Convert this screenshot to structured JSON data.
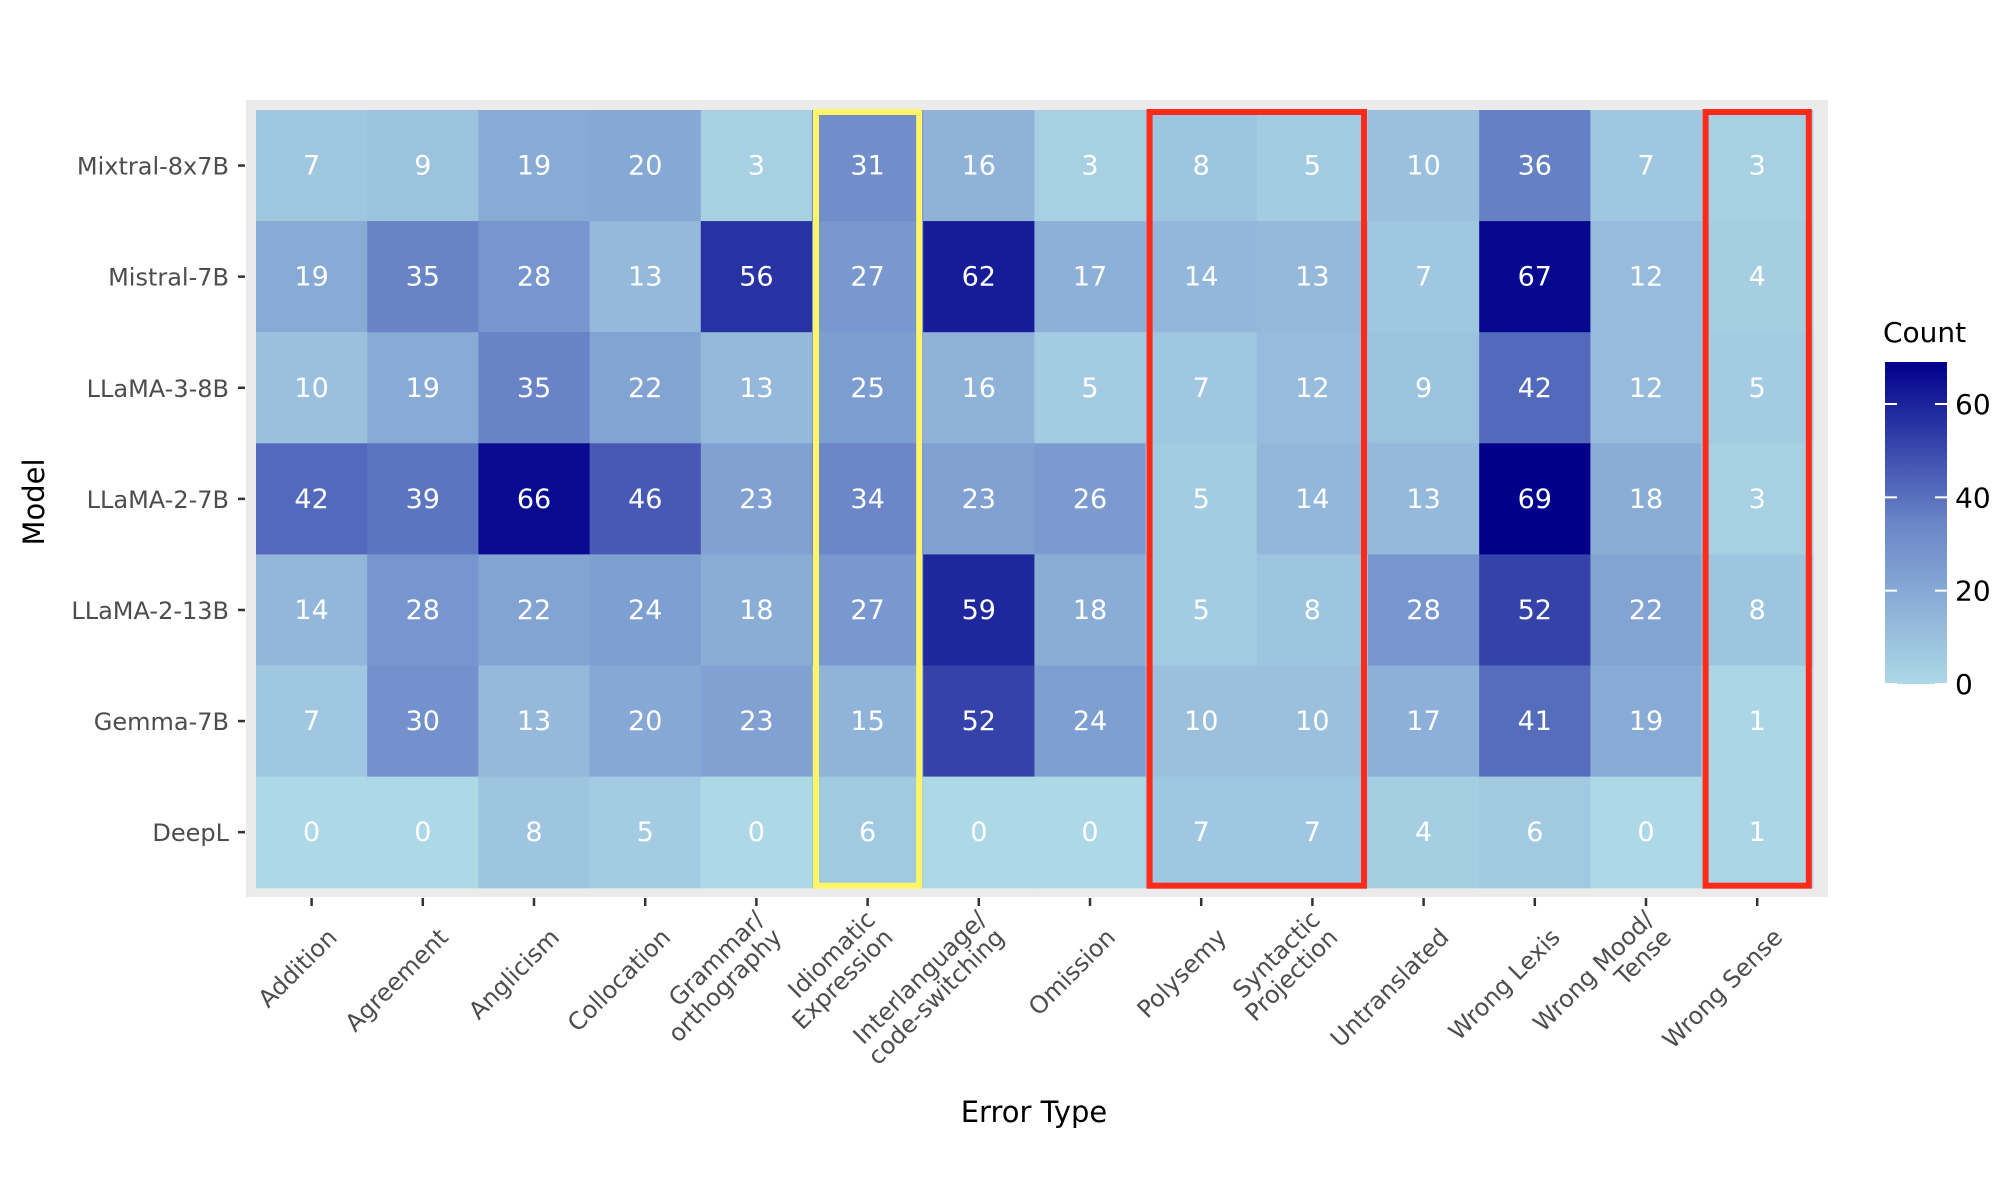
{
  "chart_data": {
    "type": "heatmap",
    "xlabel": "Error Type",
    "ylabel": "Model",
    "x_categories": [
      [
        "Addition"
      ],
      [
        "Agreement"
      ],
      [
        "Anglicism"
      ],
      [
        "Collocation"
      ],
      [
        "Grammar/",
        "orthography"
      ],
      [
        "Idiomatic",
        "Expression"
      ],
      [
        "Interlanguage/",
        "code-switching"
      ],
      [
        "Omission"
      ],
      [
        "Polysemy"
      ],
      [
        "Syntactic",
        "Projection"
      ],
      [
        "Untranslated"
      ],
      [
        "Wrong Lexis"
      ],
      [
        "Wrong Mood/",
        "Tense"
      ],
      [
        "Wrong Sense"
      ]
    ],
    "y_categories": [
      "Mixtral-8x7B",
      "Mistral-7B",
      "LLaMA-3-8B",
      "LLaMA-2-7B",
      "LLaMA-2-13B",
      "Gemma-7B",
      "DeepL"
    ],
    "values": [
      [
        7,
        9,
        19,
        20,
        3,
        31,
        16,
        3,
        8,
        5,
        10,
        36,
        7,
        3
      ],
      [
        19,
        35,
        28,
        13,
        56,
        27,
        62,
        17,
        14,
        13,
        7,
        67,
        12,
        4
      ],
      [
        10,
        19,
        35,
        22,
        13,
        25,
        16,
        5,
        7,
        12,
        9,
        42,
        12,
        5
      ],
      [
        42,
        39,
        66,
        46,
        23,
        34,
        23,
        26,
        5,
        14,
        13,
        69,
        18,
        3
      ],
      [
        14,
        28,
        22,
        24,
        18,
        27,
        59,
        18,
        5,
        8,
        28,
        52,
        22,
        8
      ],
      [
        7,
        30,
        13,
        20,
        23,
        15,
        52,
        24,
        10,
        10,
        17,
        41,
        19,
        1
      ],
      [
        0,
        0,
        8,
        5,
        0,
        6,
        0,
        0,
        7,
        7,
        4,
        6,
        0,
        1
      ]
    ],
    "color_scale": {
      "low": "#add8e6",
      "mid": "#6a86c8",
      "high": "#00008b",
      "min": 0,
      "max": 69
    },
    "legend": {
      "title": "Count",
      "ticks": [
        "0",
        "20",
        "40",
        "60"
      ],
      "tick_values": [
        0,
        20,
        40,
        60
      ],
      "position": "right"
    },
    "highlights": [
      {
        "color": "#fff566",
        "categories": [
          "Idiomatic Expression"
        ]
      },
      {
        "color": "#ff2a1a",
        "categories": [
          "Polysemy",
          "Syntactic Projection"
        ]
      },
      {
        "color": "#ff2a1a",
        "categories": [
          "Wrong Sense"
        ]
      }
    ],
    "panel_background": "#ebebeb",
    "grid": true
  }
}
